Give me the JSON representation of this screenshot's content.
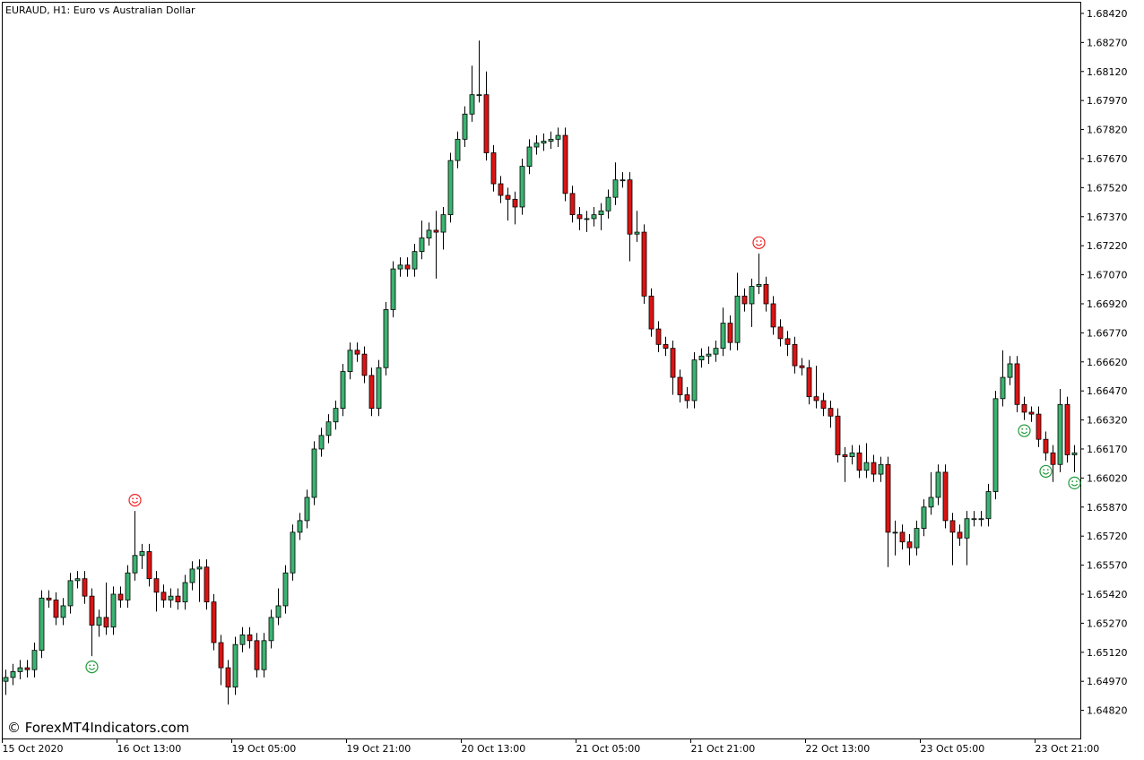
{
  "chart_data": {
    "type": "candlestick",
    "title": "EURAUD, H1:  Euro vs Australian Dollar",
    "watermark": "© ForexMT4Indicators.com",
    "up_color": "#3cb371",
    "down_color": "#dc1414",
    "buy_color": "#1f9a3a",
    "sell_color": "#ee2222",
    "categories": [
      "15 Oct 2020",
      null,
      null,
      null,
      null,
      null,
      null,
      null,
      null,
      null,
      null,
      null,
      null,
      null,
      null,
      null,
      "16 Oct 13:00",
      null,
      null,
      null,
      null,
      null,
      null,
      null,
      null,
      null,
      null,
      null,
      null,
      null,
      null,
      null,
      "19 Oct 05:00",
      null,
      null,
      null,
      null,
      null,
      null,
      null,
      null,
      null,
      null,
      null,
      null,
      null,
      null,
      null,
      "19 Oct 21:00",
      null,
      null,
      null,
      null,
      null,
      null,
      null,
      null,
      null,
      null,
      null,
      null,
      null,
      null,
      null,
      "20 Oct 13:00",
      null,
      null,
      null,
      null,
      null,
      null,
      null,
      null,
      null,
      null,
      null,
      null,
      null,
      null,
      null,
      "21 Oct 05:00",
      null,
      null,
      null,
      null,
      null,
      null,
      null,
      null,
      null,
      null,
      null,
      null,
      null,
      null,
      null,
      "21 Oct 21:00",
      null,
      null,
      null,
      null,
      null,
      null,
      null,
      null,
      null,
      null,
      null,
      null,
      null,
      null,
      null,
      "22 Oct 13:00",
      null,
      null,
      null,
      null,
      null,
      null,
      null,
      null,
      null,
      null,
      null,
      null,
      null,
      null,
      null,
      "23 Oct 05:00",
      null,
      null,
      null,
      null,
      null,
      null,
      null,
      null,
      null,
      null,
      null,
      null,
      null,
      null,
      null,
      "23 Oct 21:00",
      null,
      null,
      null,
      null,
      null
    ],
    "open": [
      1.6497,
      1.6499,
      1.6502,
      1.6504,
      1.6503,
      1.6513,
      1.654,
      1.6539,
      1.653,
      1.6536,
      1.6549,
      1.655,
      1.6541,
      1.6526,
      1.653,
      1.6525,
      1.6542,
      1.6539,
      1.6553,
      1.6562,
      1.6564,
      1.655,
      1.6543,
      1.6539,
      1.6541,
      1.6538,
      1.6548,
      1.6555,
      1.6556,
      1.6538,
      1.6517,
      1.6504,
      1.6494,
      1.6516,
      1.6521,
      1.6518,
      1.6503,
      1.6518,
      1.653,
      1.6536,
      1.6553,
      1.6574,
      1.658,
      1.6592,
      1.6617,
      1.6624,
      1.6631,
      1.6638,
      1.6657,
      1.6668,
      1.6666,
      1.6655,
      1.6638,
      1.6659,
      1.6689,
      1.671,
      1.6712,
      1.671,
      1.6719,
      1.6726,
      1.673,
      1.6729,
      1.6738,
      1.6766,
      1.6777,
      1.679,
      1.68,
      1.68,
      1.677,
      1.6754,
      1.6748,
      1.6746,
      1.6742,
      1.6763,
      1.6773,
      1.6775,
      1.6776,
      1.6777,
      1.6779,
      1.6749,
      1.6738,
      1.6736,
      1.6736,
      1.6738,
      1.674,
      1.6747,
      1.6756,
      1.6756,
      1.6728,
      1.6729,
      1.6696,
      1.6679,
      1.6671,
      1.6669,
      1.6654,
      1.6645,
      1.6642,
      1.6663,
      1.6665,
      1.6666,
      1.6669,
      1.6682,
      1.6672,
      1.6696,
      1.6692,
      1.6701,
      1.6702,
      1.6692,
      1.668,
      1.6674,
      1.6671,
      1.666,
      1.6659,
      1.6644,
      1.6642,
      1.6638,
      1.6634,
      1.6614,
      1.6613,
      1.6615,
      1.6606,
      1.661,
      1.6604,
      1.6609,
      1.6574,
      1.6574,
      1.6569,
      1.6566,
      1.6576,
      1.6587,
      1.6592,
      1.6605,
      1.658,
      1.6574,
      1.6571,
      1.6581,
      1.6581,
      1.6581,
      1.6595,
      1.6643,
      1.6654,
      1.6661,
      1.664,
      1.6636,
      1.6635,
      1.6622,
      1.6615,
      1.6609,
      1.664,
      1.6614
    ],
    "high": [
      1.6503,
      1.6506,
      1.6508,
      1.6508,
      1.6517,
      1.6544,
      1.6544,
      1.6543,
      1.654,
      1.6553,
      1.6554,
      1.6554,
      1.6545,
      1.6534,
      1.6548,
      1.6546,
      1.6546,
      1.6557,
      1.6585,
      1.6568,
      1.6568,
      1.6554,
      1.6547,
      1.6545,
      1.6545,
      1.6552,
      1.6559,
      1.656,
      1.656,
      1.6542,
      1.6521,
      1.6508,
      1.652,
      1.6525,
      1.6525,
      1.6522,
      1.6522,
      1.6534,
      1.6545,
      1.6557,
      1.6578,
      1.6584,
      1.6596,
      1.6621,
      1.6628,
      1.6635,
      1.6642,
      1.6661,
      1.6672,
      1.6672,
      1.667,
      1.6659,
      1.6663,
      1.6693,
      1.6714,
      1.6716,
      1.6716,
      1.6723,
      1.6735,
      1.6734,
      1.674,
      1.6742,
      1.677,
      1.6781,
      1.6794,
      1.6815,
      1.6828,
      1.6812,
      1.6774,
      1.6758,
      1.6752,
      1.675,
      1.6767,
      1.6777,
      1.6779,
      1.678,
      1.6781,
      1.6783,
      1.6783,
      1.6753,
      1.6742,
      1.674,
      1.6742,
      1.6744,
      1.6751,
      1.6765,
      1.676,
      1.676,
      1.674,
      1.6733,
      1.67,
      1.6683,
      1.6675,
      1.6673,
      1.6658,
      1.6649,
      1.6667,
      1.6669,
      1.667,
      1.6673,
      1.669,
      1.6686,
      1.6708,
      1.67,
      1.6705,
      1.6718,
      1.6706,
      1.6696,
      1.6684,
      1.6678,
      1.6675,
      1.6664,
      1.6663,
      1.666,
      1.6646,
      1.6642,
      1.6638,
      1.6618,
      1.6619,
      1.6619,
      1.662,
      1.6614,
      1.6613,
      1.6613,
      1.658,
      1.6578,
      1.6573,
      1.658,
      1.6591,
      1.6605,
      1.6609,
      1.6609,
      1.6584,
      1.6578,
      1.6585,
      1.6585,
      1.6585,
      1.6599,
      1.6647,
      1.6668,
      1.6665,
      1.6665,
      1.6644,
      1.6639,
      1.6639,
      1.6626,
      1.6619,
      1.6648,
      1.6644,
      1.6619
    ],
    "low": [
      1.649,
      1.6495,
      1.6498,
      1.6499,
      1.6499,
      1.6509,
      1.6535,
      1.6526,
      1.6526,
      1.6532,
      1.6545,
      1.6537,
      1.651,
      1.652,
      1.6521,
      1.6521,
      1.6535,
      1.6535,
      1.6549,
      1.6555,
      1.6546,
      1.6533,
      1.6535,
      1.6535,
      1.6534,
      1.6534,
      1.6544,
      1.6538,
      1.6534,
      1.6513,
      1.6495,
      1.6485,
      1.649,
      1.6512,
      1.6514,
      1.6499,
      1.6499,
      1.6514,
      1.6526,
      1.6532,
      1.6549,
      1.657,
      1.6576,
      1.6588,
      1.6613,
      1.662,
      1.6627,
      1.6634,
      1.6653,
      1.6662,
      1.6651,
      1.6634,
      1.6634,
      1.6655,
      1.6685,
      1.6706,
      1.6706,
      1.6706,
      1.6715,
      1.6722,
      1.6705,
      1.672,
      1.6734,
      1.6762,
      1.6773,
      1.6786,
      1.6796,
      1.6766,
      1.675,
      1.6744,
      1.6735,
      1.6733,
      1.6738,
      1.6759,
      1.6769,
      1.6771,
      1.6772,
      1.6773,
      1.6745,
      1.6734,
      1.673,
      1.6729,
      1.6732,
      1.673,
      1.6736,
      1.6743,
      1.6752,
      1.6714,
      1.6724,
      1.6692,
      1.6675,
      1.6667,
      1.6665,
      1.6645,
      1.6641,
      1.6638,
      1.6638,
      1.6659,
      1.6661,
      1.6662,
      1.6665,
      1.6668,
      1.6668,
      1.6688,
      1.668,
      1.6697,
      1.6688,
      1.6676,
      1.667,
      1.6665,
      1.6656,
      1.6655,
      1.664,
      1.6638,
      1.6634,
      1.6628,
      1.661,
      1.66,
      1.6609,
      1.6602,
      1.6602,
      1.66,
      1.66,
      1.6556,
      1.6562,
      1.6565,
      1.6557,
      1.6562,
      1.6572,
      1.6583,
      1.6588,
      1.6576,
      1.6557,
      1.6567,
      1.6557,
      1.6577,
      1.6577,
      1.6577,
      1.6591,
      1.6639,
      1.665,
      1.6636,
      1.6632,
      1.6631,
      1.6618,
      1.6611,
      1.66,
      1.6605,
      1.661,
      1.6605
    ],
    "close": [
      1.6499,
      1.6502,
      1.6504,
      1.6503,
      1.6513,
      1.654,
      1.6539,
      1.653,
      1.6536,
      1.6549,
      1.655,
      1.6541,
      1.6526,
      1.653,
      1.6525,
      1.6542,
      1.6539,
      1.6553,
      1.6562,
      1.6564,
      1.655,
      1.6543,
      1.6539,
      1.6541,
      1.6538,
      1.6548,
      1.6555,
      1.6556,
      1.6538,
      1.6517,
      1.6504,
      1.6494,
      1.6516,
      1.6521,
      1.6518,
      1.6503,
      1.6518,
      1.653,
      1.6536,
      1.6553,
      1.6574,
      1.658,
      1.6592,
      1.6617,
      1.6624,
      1.6631,
      1.6638,
      1.6657,
      1.6668,
      1.6666,
      1.6655,
      1.6638,
      1.6659,
      1.6689,
      1.671,
      1.6712,
      1.671,
      1.6719,
      1.6726,
      1.673,
      1.6729,
      1.6738,
      1.6766,
      1.6777,
      1.679,
      1.68,
      1.68,
      1.677,
      1.6754,
      1.6748,
      1.6746,
      1.6742,
      1.6763,
      1.6773,
      1.6775,
      1.6776,
      1.6777,
      1.6779,
      1.6749,
      1.6738,
      1.6736,
      1.6736,
      1.6738,
      1.674,
      1.6747,
      1.6756,
      1.6756,
      1.6728,
      1.6729,
      1.6696,
      1.6679,
      1.6671,
      1.6669,
      1.6654,
      1.6645,
      1.6642,
      1.6663,
      1.6665,
      1.6666,
      1.6669,
      1.6682,
      1.6672,
      1.6696,
      1.6692,
      1.6701,
      1.6702,
      1.6692,
      1.668,
      1.6674,
      1.6671,
      1.666,
      1.6659,
      1.6644,
      1.6642,
      1.6638,
      1.6634,
      1.6614,
      1.6613,
      1.6615,
      1.6606,
      1.661,
      1.6604,
      1.6609,
      1.6574,
      1.6574,
      1.6569,
      1.6566,
      1.6576,
      1.6587,
      1.6592,
      1.6605,
      1.658,
      1.6574,
      1.6571,
      1.6581,
      1.6581,
      1.6581,
      1.6595,
      1.6643,
      1.6654,
      1.6661,
      1.664,
      1.6636,
      1.6635,
      1.6622,
      1.6615,
      1.6609,
      1.664,
      1.6614,
      1.6615
    ],
    "buy_signals": [
      12,
      142,
      145,
      149
    ],
    "sell_signals": [
      18,
      105
    ],
    "ylim": [
      1.6467,
      1.6848
    ],
    "yticks": [
      {
        "value": 1.6842,
        "label": "1.68420"
      },
      {
        "value": 1.6827,
        "label": "1.68270"
      },
      {
        "value": 1.6812,
        "label": "1.68120"
      },
      {
        "value": 1.6797,
        "label": "1.67970"
      },
      {
        "value": 1.6782,
        "label": "1.67820"
      },
      {
        "value": 1.6767,
        "label": "1.67670"
      },
      {
        "value": 1.6752,
        "label": "1.67520"
      },
      {
        "value": 1.6737,
        "label": "1.67370"
      },
      {
        "value": 1.6722,
        "label": "1.67220"
      },
      {
        "value": 1.6707,
        "label": "1.67070"
      },
      {
        "value": 1.6692,
        "label": "1.66920"
      },
      {
        "value": 1.6677,
        "label": "1.66770"
      },
      {
        "value": 1.6662,
        "label": "1.66620"
      },
      {
        "value": 1.6647,
        "label": "1.66470"
      },
      {
        "value": 1.6632,
        "label": "1.66320"
      },
      {
        "value": 1.6617,
        "label": "1.66170"
      },
      {
        "value": 1.6602,
        "label": "1.66020"
      },
      {
        "value": 1.6587,
        "label": "1.65870"
      },
      {
        "value": 1.6572,
        "label": "1.65720"
      },
      {
        "value": 1.6557,
        "label": "1.65570"
      },
      {
        "value": 1.6542,
        "label": "1.65420"
      },
      {
        "value": 1.6527,
        "label": "1.65270"
      },
      {
        "value": 1.6512,
        "label": "1.65120"
      },
      {
        "value": 1.6497,
        "label": "1.64970"
      },
      {
        "value": 1.6482,
        "label": "1.64820"
      }
    ]
  }
}
